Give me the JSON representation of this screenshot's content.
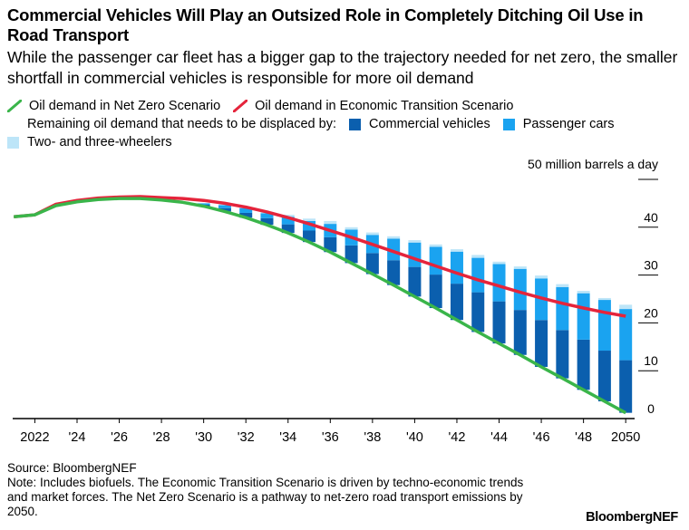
{
  "title": "Commercial Vehicles Will Play an Outsized Role in Completely Ditching Oil Use in Road Transport",
  "subtitle": "While the passenger car fleet has a bigger gap to the trajectory needed for net zero, the smaller shortfall in commercial vehicles is responsible for more oil demand",
  "legend": {
    "nzs": "Oil demand in Net Zero Scenario",
    "ets": "Oil demand in Economic Transition Scenario",
    "remaining_label": "Remaining oil demand that needs to be displaced by:",
    "commercial": "Commercial vehicles",
    "passenger": "Passenger cars",
    "two_three": "Two- and three-wheelers"
  },
  "colors": {
    "nzs": "#3ab54a",
    "ets": "#e5243b",
    "commercial": "#0b5fae",
    "passenger": "#1aa3f0",
    "two_three": "#bde5f8",
    "axis": "#000000",
    "grid": "#000000"
  },
  "chart_data": {
    "type": "bar",
    "unit_label": "50 million barrels a day",
    "ylim": [
      0,
      50
    ],
    "yticks": [
      0,
      10,
      20,
      30,
      40,
      50
    ],
    "ytick_labels": [
      "0",
      "10",
      "20",
      "30",
      "40",
      ""
    ],
    "xtick_years": [
      2022,
      2024,
      2026,
      2028,
      2030,
      2032,
      2034,
      2036,
      2038,
      2040,
      2042,
      2044,
      2046,
      2048,
      2050
    ],
    "xtick_labels": [
      "2022",
      "'24",
      "'26",
      "'28",
      "'30",
      "'32",
      "'34",
      "'36",
      "'38",
      "'40",
      "'42",
      "'44",
      "'46",
      "'48",
      "2050"
    ],
    "years": [
      2021,
      2022,
      2023,
      2024,
      2025,
      2026,
      2027,
      2028,
      2029,
      2030,
      2031,
      2032,
      2033,
      2034,
      2035,
      2036,
      2037,
      2038,
      2039,
      2040,
      2041,
      2042,
      2043,
      2044,
      2045,
      2046,
      2047,
      2048,
      2049,
      2050
    ],
    "series": [
      {
        "name": "Oil demand in Net Zero Scenario",
        "type": "line",
        "values": [
          42.2,
          42.6,
          44.5,
          45.3,
          45.8,
          46.0,
          46.0,
          45.7,
          45.2,
          44.4,
          43.3,
          42.0,
          40.5,
          38.8,
          36.9,
          34.8,
          32.5,
          30.2,
          27.9,
          25.5,
          23.1,
          20.6,
          18.1,
          15.7,
          13.3,
          10.8,
          8.4,
          6.0,
          3.6,
          1.2
        ]
      },
      {
        "name": "Oil demand in Economic Transition Scenario",
        "type": "line",
        "values": [
          42.2,
          42.6,
          44.8,
          45.6,
          46.1,
          46.3,
          46.4,
          46.2,
          46.0,
          45.6,
          45.0,
          44.2,
          43.2,
          42.0,
          40.7,
          39.3,
          37.9,
          36.4,
          34.9,
          33.4,
          31.9,
          30.4,
          29.0,
          27.7,
          26.4,
          25.2,
          24.1,
          23.1,
          22.2,
          21.4
        ]
      },
      {
        "name": "Commercial vehicles",
        "type": "bar",
        "values": [
          0,
          0,
          0,
          0,
          0,
          0,
          0,
          0,
          0,
          0.3,
          0.7,
          1.0,
          1.4,
          1.8,
          2.4,
          3.1,
          3.7,
          4.4,
          5.2,
          6.2,
          7.0,
          7.6,
          8.3,
          8.8,
          9.4,
          9.8,
          10.1,
          10.5,
          10.6,
          11.0
        ]
      },
      {
        "name": "Passenger cars",
        "type": "bar",
        "values": [
          0,
          0,
          0,
          0,
          0,
          0,
          0,
          0,
          0.1,
          0.3,
          0.6,
          1.0,
          1.0,
          1.6,
          2.0,
          2.8,
          3.3,
          3.8,
          4.5,
          5.1,
          5.8,
          6.7,
          7.2,
          7.8,
          8.6,
          8.7,
          9.0,
          9.7,
          10.6,
          10.7
        ]
      },
      {
        "name": "Two- and three-wheelers",
        "type": "bar",
        "values": [
          0,
          0,
          0,
          0,
          0,
          0,
          0,
          0,
          0,
          0,
          0.2,
          0.2,
          0.3,
          0.4,
          0.5,
          0.6,
          0.5,
          0.5,
          0.5,
          0.5,
          0.5,
          0.5,
          0.6,
          0.5,
          0.5,
          0.6,
          0.6,
          0.5,
          0.4,
          0.9
        ]
      }
    ]
  },
  "footer": {
    "source": "Source: BloombergNEF",
    "note": "Note: Includes biofuels. The Economic Transition Scenario is driven by techno-economic trends and market forces. The Net Zero Scenario is a pathway to net-zero road transport emissions by 2050.",
    "brand": "BloombergNEF"
  }
}
